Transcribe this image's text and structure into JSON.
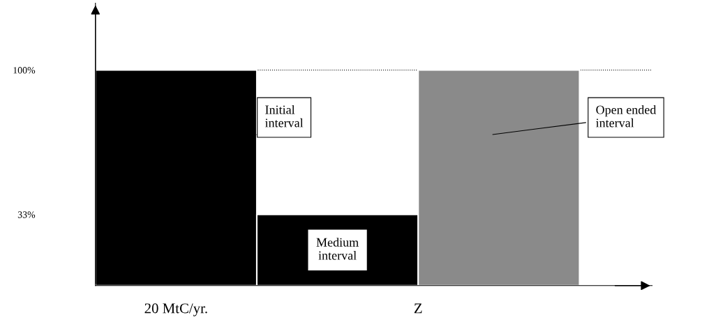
{
  "chart_data": {
    "type": "bar",
    "categories": [
      "20 MtC/yr.",
      null,
      null
    ],
    "values": [
      100,
      33,
      100
    ],
    "colors": [
      "#000000",
      "#000000",
      "#8a8a8a"
    ],
    "ylim": [
      0,
      131
    ],
    "yticks": [
      {
        "value": 100,
        "label": "100%"
      },
      {
        "value": 33,
        "label": "33%"
      }
    ],
    "ref_lines": [
      {
        "axis": "y",
        "value": 100,
        "line_style": "dotted",
        "color": "#000000"
      }
    ],
    "annotations": [
      "Initial\ninterval",
      "Medium\ninterval",
      "Open ended\ninterval",
      "Z"
    ],
    "grid": false
  }
}
